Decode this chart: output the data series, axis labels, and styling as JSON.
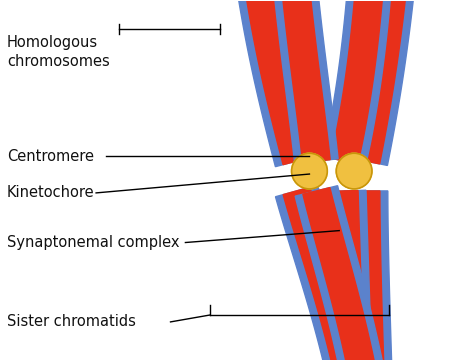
{
  "background_color": "#ffffff",
  "red_color": "#e8301a",
  "blue_color": "#5b82cc",
  "gold_color": "#f0c040",
  "gold_edge": "#c8960a",
  "text_color": "#111111",
  "labels": {
    "homologous": "Homologous\nchromosomes",
    "centromere": "Centromere",
    "kinetochore": "Kinetochore",
    "synaptonemal": "Synaptonemal complex",
    "sister": "Sister chromatids"
  },
  "fontsize": 10.5
}
